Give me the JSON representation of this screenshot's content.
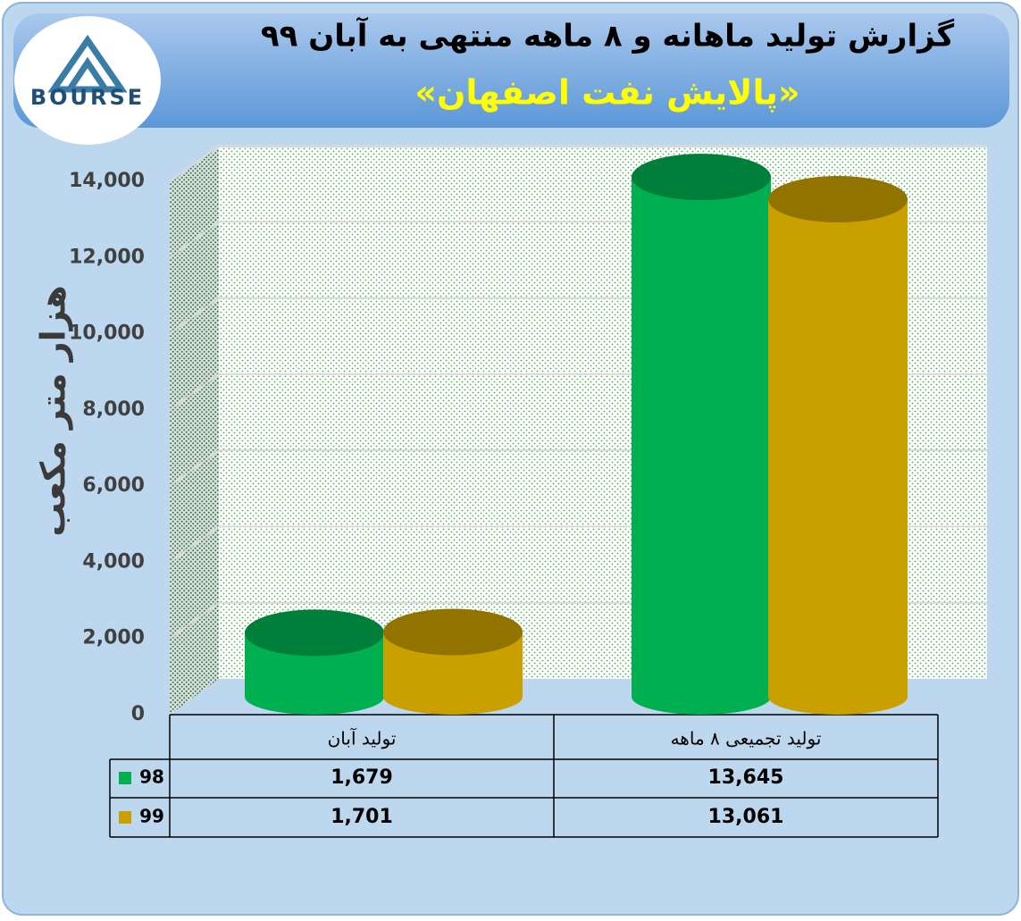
{
  "chart_data": {
    "type": "bar",
    "logo": "BOURSE",
    "title": "گزارش تولید ماهانه و ۸ ماهه منتهی به آبان ۹۹",
    "subtitle": "«پالایش نفت اصفهان»",
    "y_label": "هزار متر مکعب",
    "categories": [
      "تولید آبان",
      "تولید تجمیعی ۸ ماهه"
    ],
    "series": [
      {
        "name": "98",
        "color": "#00b050",
        "values": [
          1679,
          13645
        ],
        "value_labels": [
          "1,679",
          "13,645"
        ]
      },
      {
        "name": "99",
        "color": "#c9a000",
        "values": [
          1701,
          13061
        ],
        "value_labels": [
          "1,701",
          "13,061"
        ]
      }
    ],
    "ylim": [
      0,
      14000
    ],
    "yticks": [
      0,
      {
        "value": 2000,
        "label": "2,000"
      },
      {
        "value": 4000,
        "label": "4,000"
      },
      {
        "value": 6000,
        "label": "6,000"
      },
      {
        "value": 8000,
        "label": "8,000"
      },
      {
        "value": 10000,
        "label": "10,000"
      },
      {
        "value": 12000,
        "label": "12,000"
      },
      {
        "value": 14000,
        "label": "14,000"
      }
    ],
    "grid": true
  }
}
